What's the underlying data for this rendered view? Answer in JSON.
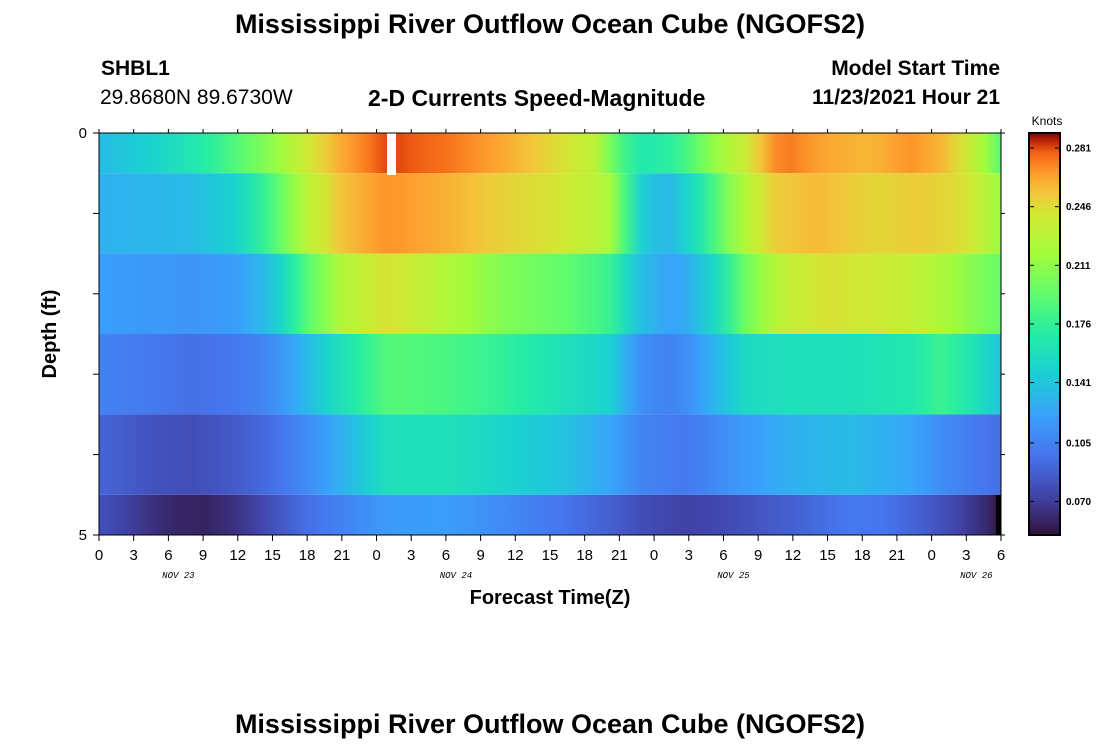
{
  "header": {
    "title": "Mississippi River Outflow Ocean Cube (NGOFS2)",
    "station_id": "SHBL1",
    "coords": "29.8680N  89.6730W",
    "subtitle": "2-D Currents Speed-Magnitude",
    "model_start_label": "Model Start Time",
    "model_start_value": "11/23/2021 Hour 21"
  },
  "footer": {
    "title": "Mississippi River Outflow Ocean Cube (NGOFS2)"
  },
  "chart_data": {
    "type": "heatmap",
    "xlabel": "Forecast Time(Z)",
    "ylabel": "Depth (ft)",
    "y_tick_labels": [
      "0",
      "5"
    ],
    "ylim": [
      5,
      0
    ],
    "x_tick_labels": [
      "0",
      "3",
      "6",
      "9",
      "12",
      "15",
      "18",
      "21",
      "0",
      "3",
      "6",
      "9",
      "12",
      "15",
      "18",
      "21",
      "0",
      "3",
      "6",
      "9",
      "12",
      "15",
      "18",
      "21",
      "0",
      "3",
      "6"
    ],
    "date_labels": [
      "NOV 23",
      "NOV 24",
      "NOV 25",
      "NOV 26"
    ],
    "x_hours_range": [
      0,
      78
    ],
    "colorbar": {
      "unit": "Knots",
      "tick_labels": [
        "0.281",
        "0.246",
        "0.211",
        "0.176",
        "0.141",
        "0.105",
        "0.070"
      ],
      "range": [
        0.05,
        0.29
      ]
    },
    "layers": [
      {
        "depth_range": [
          0.0,
          0.5
        ],
        "keys": [
          [
            0,
            0.135
          ],
          [
            5,
            0.15
          ],
          [
            10,
            0.175
          ],
          [
            15,
            0.21
          ],
          [
            18,
            0.24
          ],
          [
            21,
            0.262
          ],
          [
            25,
            0.282
          ],
          [
            30,
            0.275
          ],
          [
            35,
            0.262
          ],
          [
            40,
            0.245
          ],
          [
            43,
            0.23
          ],
          [
            45,
            0.185
          ],
          [
            47,
            0.165
          ],
          [
            50,
            0.175
          ],
          [
            53,
            0.21
          ],
          [
            56,
            0.24
          ],
          [
            59,
            0.275
          ],
          [
            63,
            0.262
          ],
          [
            67,
            0.258
          ],
          [
            70,
            0.268
          ],
          [
            73,
            0.258
          ],
          [
            76,
            0.23
          ],
          [
            78,
            0.19
          ]
        ]
      },
      {
        "depth_range": [
          0.5,
          1.5
        ],
        "keys": [
          [
            0,
            0.13
          ],
          [
            8,
            0.135
          ],
          [
            12,
            0.15
          ],
          [
            15,
            0.185
          ],
          [
            18,
            0.23
          ],
          [
            21,
            0.255
          ],
          [
            25,
            0.268
          ],
          [
            30,
            0.26
          ],
          [
            35,
            0.25
          ],
          [
            40,
            0.242
          ],
          [
            44,
            0.225
          ],
          [
            47,
            0.145
          ],
          [
            49,
            0.13
          ],
          [
            52,
            0.165
          ],
          [
            55,
            0.215
          ],
          [
            58,
            0.25
          ],
          [
            62,
            0.258
          ],
          [
            67,
            0.248
          ],
          [
            71,
            0.252
          ],
          [
            75,
            0.245
          ],
          [
            78,
            0.215
          ]
        ]
      },
      {
        "depth_range": [
          1.5,
          2.5
        ],
        "keys": [
          [
            0,
            0.12
          ],
          [
            8,
            0.115
          ],
          [
            12,
            0.12
          ],
          [
            15,
            0.14
          ],
          [
            18,
            0.19
          ],
          [
            21,
            0.225
          ],
          [
            25,
            0.245
          ],
          [
            30,
            0.225
          ],
          [
            35,
            0.205
          ],
          [
            40,
            0.195
          ],
          [
            44,
            0.18
          ],
          [
            47,
            0.135
          ],
          [
            50,
            0.12
          ],
          [
            53,
            0.15
          ],
          [
            56,
            0.2
          ],
          [
            59,
            0.232
          ],
          [
            63,
            0.245
          ],
          [
            67,
            0.24
          ],
          [
            70,
            0.235
          ],
          [
            73,
            0.222
          ],
          [
            76,
            0.205
          ],
          [
            78,
            0.195
          ]
        ]
      },
      {
        "depth_range": [
          2.5,
          3.5
        ],
        "keys": [
          [
            0,
            0.105
          ],
          [
            5,
            0.1
          ],
          [
            8,
            0.095
          ],
          [
            12,
            0.1
          ],
          [
            15,
            0.11
          ],
          [
            18,
            0.135
          ],
          [
            21,
            0.16
          ],
          [
            25,
            0.19
          ],
          [
            30,
            0.185
          ],
          [
            35,
            0.175
          ],
          [
            40,
            0.16
          ],
          [
            44,
            0.15
          ],
          [
            47,
            0.11
          ],
          [
            50,
            0.105
          ],
          [
            53,
            0.13
          ],
          [
            56,
            0.155
          ],
          [
            60,
            0.16
          ],
          [
            65,
            0.16
          ],
          [
            70,
            0.165
          ],
          [
            73,
            0.18
          ],
          [
            76,
            0.16
          ],
          [
            78,
            0.14
          ]
        ]
      },
      {
        "depth_range": [
          3.5,
          4.5
        ],
        "keys": [
          [
            0,
            0.09
          ],
          [
            5,
            0.08
          ],
          [
            8,
            0.078
          ],
          [
            12,
            0.085
          ],
          [
            15,
            0.095
          ],
          [
            18,
            0.11
          ],
          [
            21,
            0.13
          ],
          [
            25,
            0.16
          ],
          [
            30,
            0.16
          ],
          [
            35,
            0.15
          ],
          [
            40,
            0.14
          ],
          [
            44,
            0.125
          ],
          [
            47,
            0.105
          ],
          [
            51,
            0.1
          ],
          [
            55,
            0.115
          ],
          [
            60,
            0.13
          ],
          [
            65,
            0.135
          ],
          [
            70,
            0.125
          ],
          [
            73,
            0.11
          ],
          [
            76,
            0.1
          ],
          [
            78,
            0.095
          ]
        ]
      },
      {
        "depth_range": [
          4.5,
          5.0
        ],
        "keys": [
          [
            0,
            0.08
          ],
          [
            3,
            0.07
          ],
          [
            6,
            0.06
          ],
          [
            9,
            0.058
          ],
          [
            12,
            0.065
          ],
          [
            15,
            0.08
          ],
          [
            18,
            0.095
          ],
          [
            21,
            0.105
          ],
          [
            25,
            0.118
          ],
          [
            30,
            0.12
          ],
          [
            35,
            0.11
          ],
          [
            40,
            0.098
          ],
          [
            44,
            0.088
          ],
          [
            47,
            0.078
          ],
          [
            51,
            0.072
          ],
          [
            55,
            0.078
          ],
          [
            60,
            0.088
          ],
          [
            65,
            0.1
          ],
          [
            68,
            0.098
          ],
          [
            71,
            0.088
          ],
          [
            74,
            0.075
          ],
          [
            77,
            0.06
          ],
          [
            78,
            0.05
          ]
        ]
      }
    ]
  }
}
